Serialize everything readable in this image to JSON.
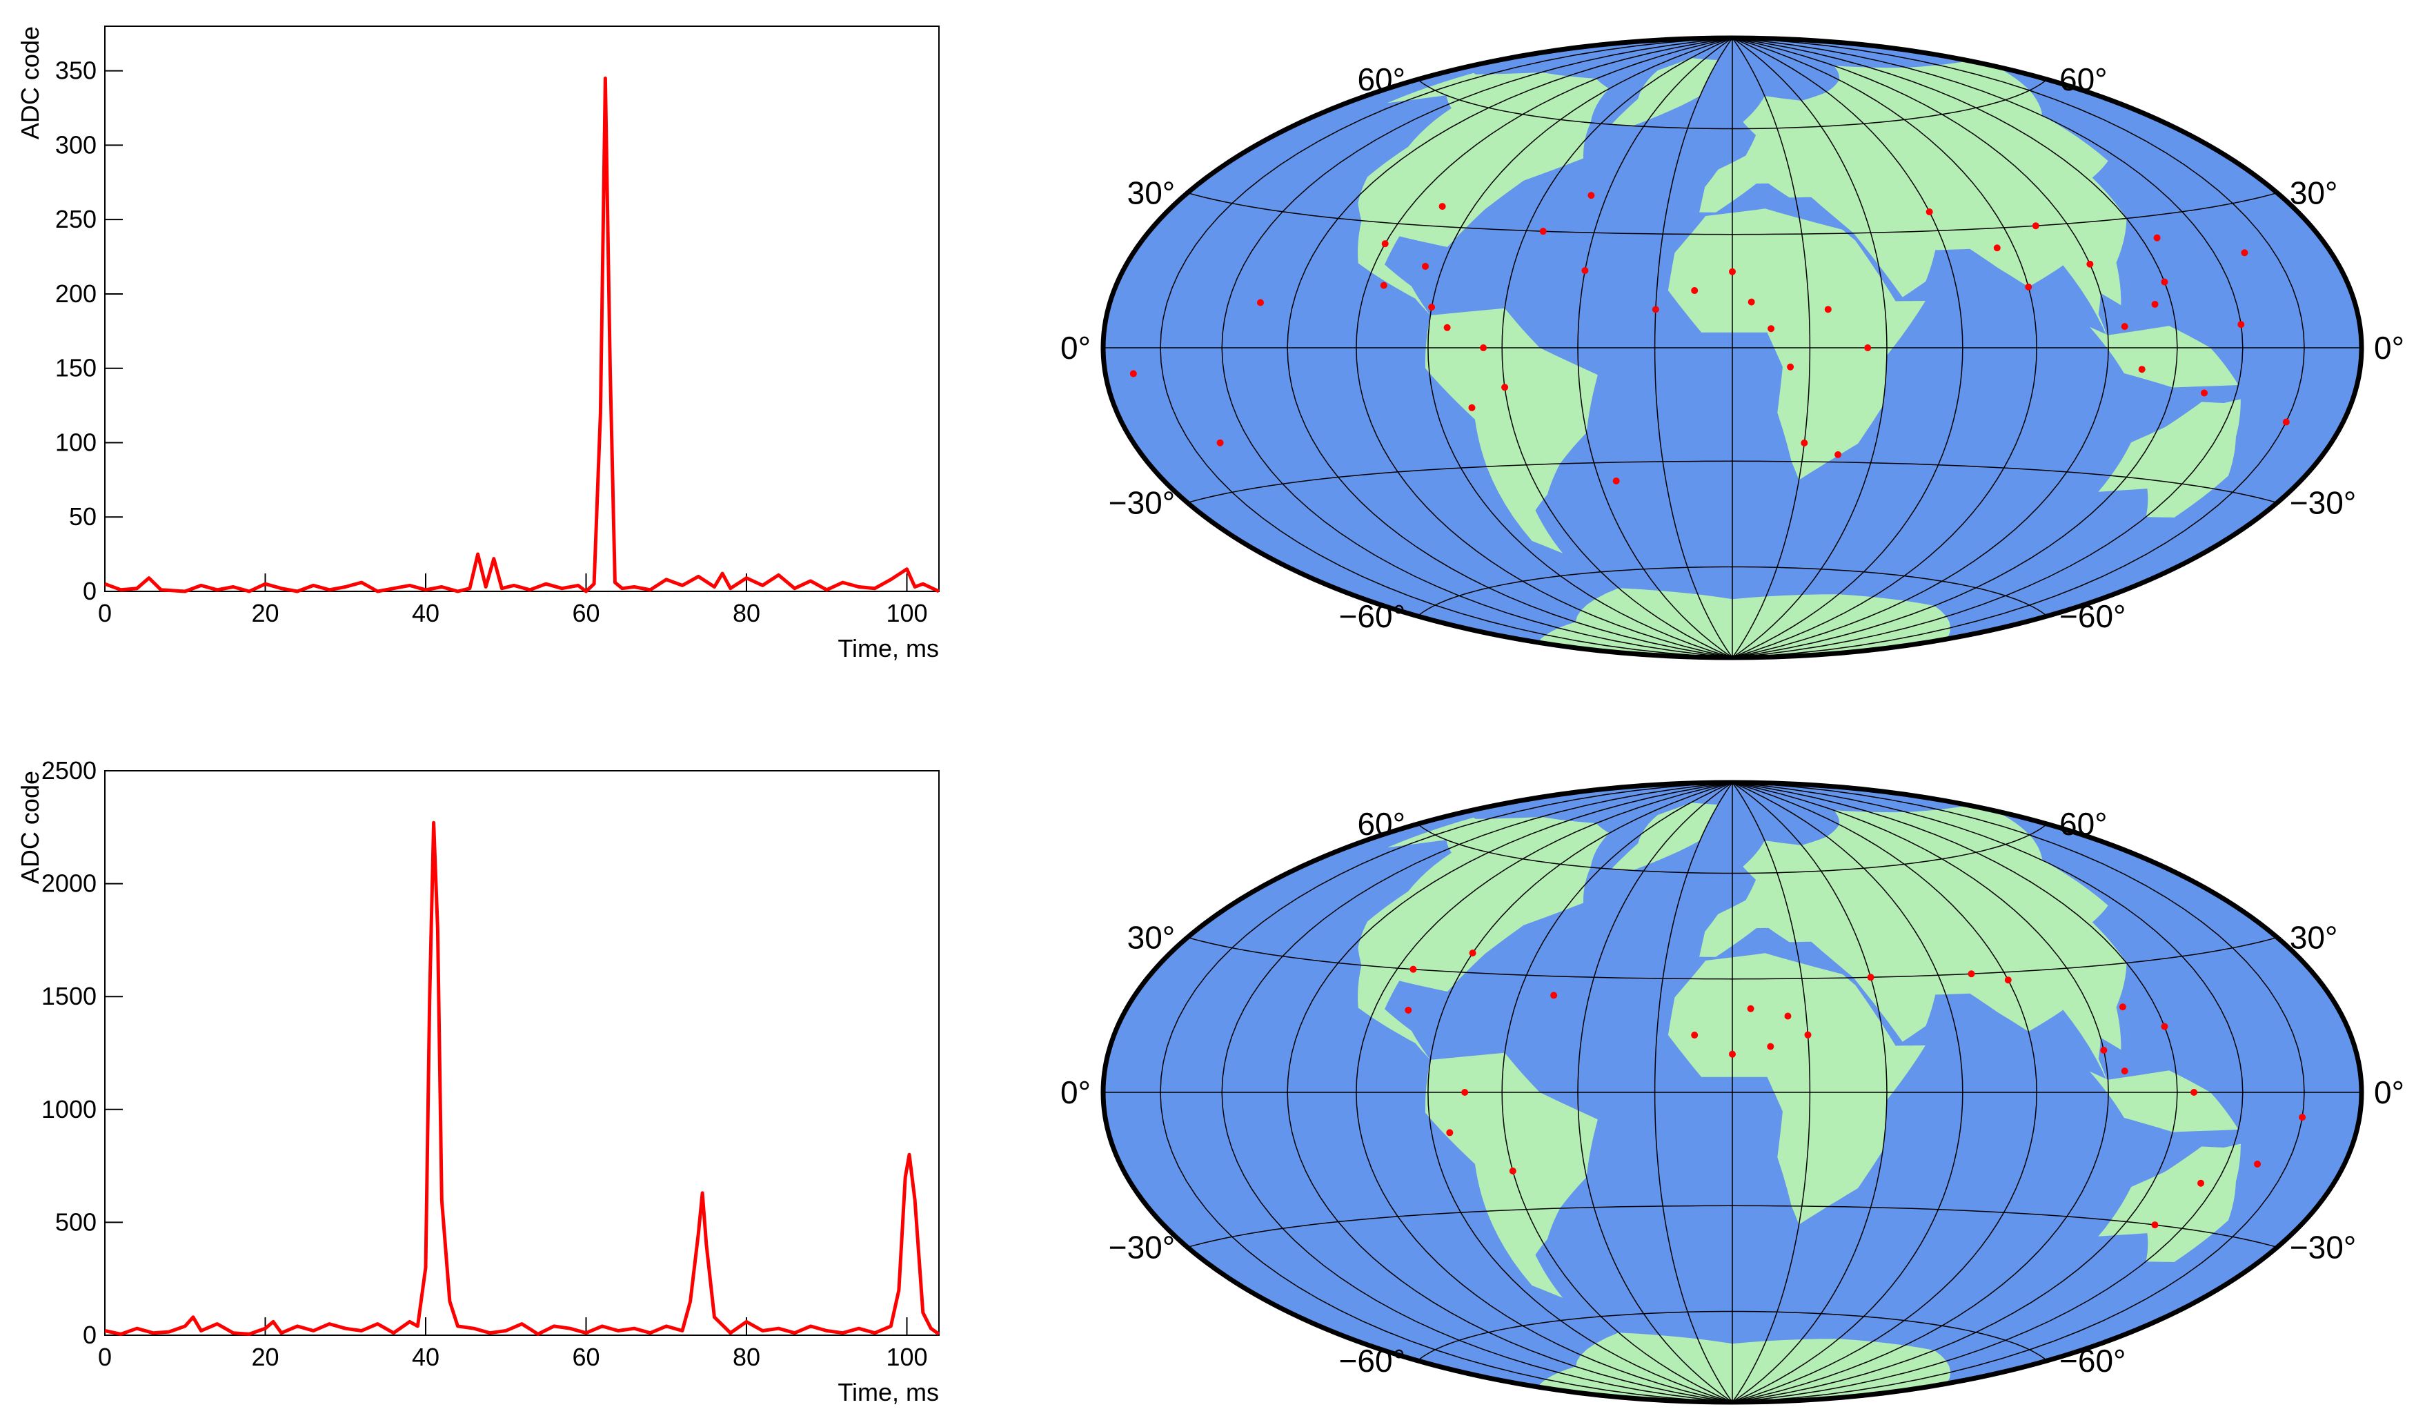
{
  "chart_data": [
    {
      "type": "line",
      "xlabel": "Time, ms",
      "ylabel": "ADC code",
      "color": "#ff0000",
      "x": [
        0,
        2,
        4,
        5.5,
        7,
        10,
        12,
        14,
        16,
        18,
        20,
        22,
        24,
        26,
        28,
        30,
        32,
        34,
        36,
        38,
        40,
        42,
        44,
        45.5,
        46.5,
        47.5,
        48.5,
        49.5,
        51,
        53,
        55,
        57,
        59,
        60,
        61,
        61.8,
        62.4,
        63,
        63.6,
        64.5,
        66,
        68,
        70,
        72,
        74,
        76,
        77,
        78,
        80,
        82,
        84,
        86,
        88,
        90,
        92,
        94,
        96,
        98,
        100,
        101,
        102,
        104
      ],
      "values": [
        5,
        1,
        2,
        9,
        1,
        0,
        4,
        1,
        3,
        0,
        5,
        2,
        0,
        4,
        1,
        3,
        6,
        0,
        2,
        4,
        1,
        3,
        0,
        2,
        25,
        3,
        22,
        2,
        4,
        1,
        5,
        2,
        4,
        0,
        5,
        120,
        345,
        150,
        6,
        2,
        3,
        1,
        8,
        4,
        10,
        3,
        12,
        2,
        9,
        4,
        11,
        2,
        7,
        1,
        6,
        3,
        2,
        8,
        15,
        3,
        5,
        0
      ],
      "xlim": [
        0,
        104
      ],
      "xticks": [
        0,
        20,
        40,
        60,
        80,
        100
      ],
      "ylim": [
        0,
        380
      ],
      "yticks": [
        0,
        50,
        100,
        150,
        200,
        250,
        300,
        350
      ]
    },
    {
      "type": "map",
      "color": "#ff0000",
      "ocean_color": "#6495ed",
      "land_color": "#b4eeb4",
      "yticks": [
        {
          "value": 60,
          "label": "60°"
        },
        {
          "value": 30,
          "label": "30°"
        },
        {
          "value": 0,
          "label": "0°"
        },
        {
          "value": -30,
          "label": "−30°"
        },
        {
          "value": -60,
          "label": "−60°"
        }
      ],
      "xlim": [
        -180,
        180
      ],
      "ylim": [
        -90,
        90
      ],
      "x": [
        -100,
        -95,
        -90,
        -85,
        -80,
        -75,
        -70,
        -65,
        -60,
        -55,
        -45,
        -40,
        -20,
        -10,
        0,
        5,
        10,
        15,
        20,
        25,
        30,
        35,
        60,
        75,
        80,
        90,
        100,
        105,
        110,
        115,
        120,
        125,
        130,
        140,
        150,
        160,
        -130,
        -150,
        -170,
        -35
      ],
      "values": [
        25,
        15,
        35,
        20,
        10,
        5,
        -15,
        0,
        -10,
        30,
        40,
        20,
        10,
        15,
        20,
        12,
        5,
        -5,
        -25,
        10,
        -28,
        0,
        35,
        25,
        15,
        30,
        20,
        5,
        -5,
        10,
        15,
        25,
        -10,
        5,
        20,
        -15,
        10,
        -20,
        -5,
        -35
      ]
    },
    {
      "type": "line",
      "xlabel": "Time, ms",
      "ylabel": "ADC code",
      "color": "#ff0000",
      "x": [
        0,
        2,
        4,
        6,
        8,
        10,
        11,
        12,
        14,
        16,
        18,
        20,
        21,
        22,
        24,
        26,
        28,
        30,
        32,
        34,
        36,
        38,
        39,
        40,
        40.5,
        41,
        41.5,
        42,
        43,
        44,
        46,
        48,
        50,
        52,
        54,
        56,
        58,
        60,
        62,
        64,
        66,
        68,
        70,
        72,
        73,
        74,
        74.5,
        75,
        76,
        78,
        80,
        82,
        84,
        86,
        88,
        90,
        92,
        94,
        96,
        98,
        99,
        99.8,
        100.3,
        101,
        102,
        103,
        104
      ],
      "values": [
        20,
        5,
        30,
        10,
        15,
        40,
        80,
        20,
        50,
        10,
        5,
        30,
        60,
        10,
        40,
        20,
        50,
        30,
        20,
        50,
        10,
        60,
        40,
        300,
        1500,
        2270,
        1800,
        600,
        150,
        40,
        30,
        10,
        20,
        50,
        5,
        40,
        30,
        10,
        40,
        20,
        30,
        10,
        40,
        20,
        150,
        450,
        630,
        400,
        80,
        10,
        60,
        20,
        30,
        10,
        40,
        20,
        10,
        30,
        10,
        40,
        200,
        700,
        800,
        600,
        100,
        30,
        5
      ],
      "xlim": [
        0,
        104
      ],
      "xticks": [
        0,
        20,
        40,
        60,
        80,
        100
      ],
      "ylim": [
        0,
        2500
      ],
      "yticks": [
        0,
        500,
        1000,
        1500,
        2000,
        2500
      ]
    },
    {
      "type": "map",
      "color": "#ff0000",
      "ocean_color": "#6495ed",
      "land_color": "#b4eeb4",
      "yticks": [
        {
          "value": 60,
          "label": "60°"
        },
        {
          "value": 30,
          "label": "30°"
        },
        {
          "value": 0,
          "label": "0°"
        },
        {
          "value": -30,
          "label": "−30°"
        },
        {
          "value": -60,
          "label": "−60°"
        }
      ],
      "xlim": [
        -180,
        180
      ],
      "ylim": [
        -90,
        90
      ],
      "x": [
        -95,
        -90,
        -80,
        -75,
        -70,
        -60,
        -50,
        -10,
        0,
        5,
        10,
        15,
        20,
        40,
        70,
        80,
        100,
        105,
        110,
        120,
        125,
        130,
        135,
        150,
        160
      ],
      "values": [
        30,
        20,
        35,
        -10,
        0,
        -20,
        25,
        15,
        10,
        22,
        12,
        20,
        15,
        30,
        30,
        28,
        10,
        5,
        20,
        15,
        0,
        -30,
        -20,
        -15,
        -5
      ]
    }
  ]
}
